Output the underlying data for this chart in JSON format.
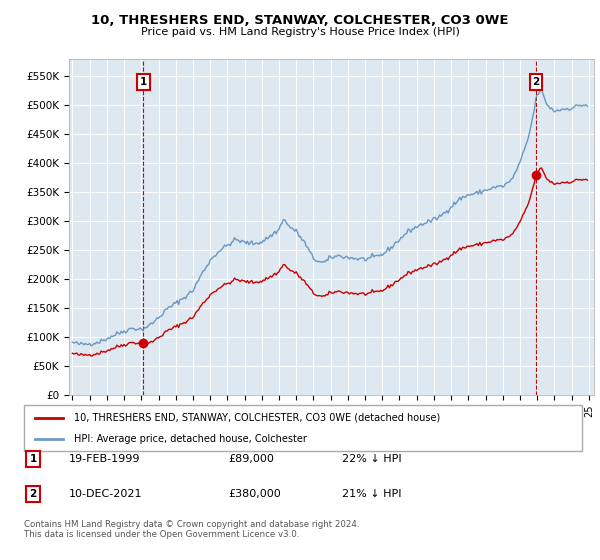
{
  "title": "10, THRESHERS END, STANWAY, COLCHESTER, CO3 0WE",
  "subtitle": "Price paid vs. HM Land Registry's House Price Index (HPI)",
  "legend_line1": "10, THRESHERS END, STANWAY, COLCHESTER, CO3 0WE (detached house)",
  "legend_line2": "HPI: Average price, detached house, Colchester",
  "footnote": "Contains HM Land Registry data © Crown copyright and database right 2024.\nThis data is licensed under the Open Government Licence v3.0.",
  "red_color": "#cc0000",
  "blue_color": "#5588bb",
  "plot_bg_color": "#dde8f0",
  "background_color": "#ffffff",
  "grid_color": "#ffffff",
  "ylim": [
    0,
    580000
  ],
  "yticks": [
    0,
    50000,
    100000,
    150000,
    200000,
    250000,
    300000,
    350000,
    400000,
    450000,
    500000,
    550000
  ],
  "ytick_labels": [
    "£0",
    "£50K",
    "£100K",
    "£150K",
    "£200K",
    "£250K",
    "£300K",
    "£350K",
    "£400K",
    "£450K",
    "£500K",
    "£550K"
  ],
  "sale1_year": 1999.12,
  "sale1_value": 89000,
  "sale2_year": 2021.92,
  "sale2_value": 380000,
  "xmin": 1994.8,
  "xmax": 2025.3
}
